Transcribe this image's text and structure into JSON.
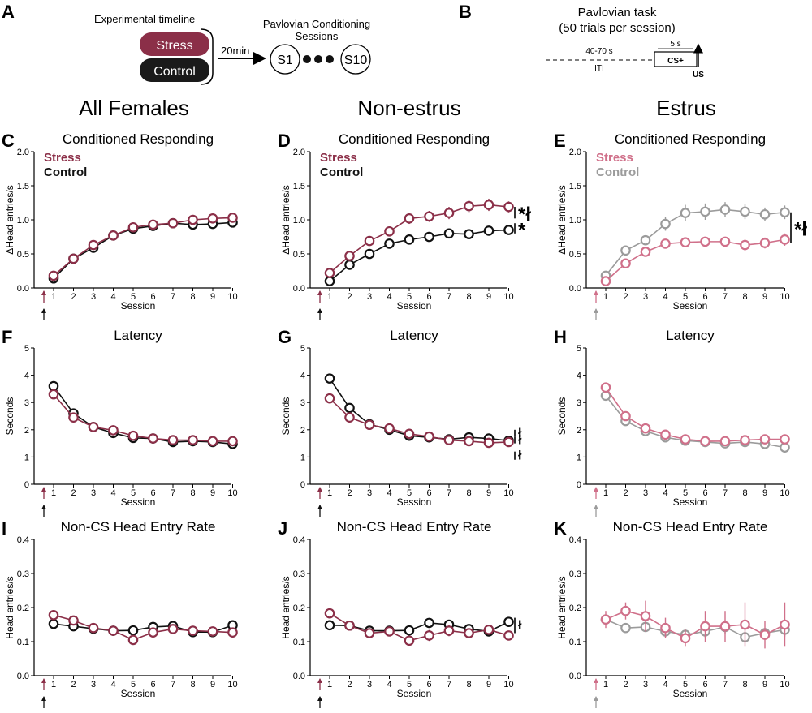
{
  "colors": {
    "stress": "#8b2f48",
    "control": "#111111",
    "estrus_stress": "#d0708a",
    "estrus_control": "#9b9b9b",
    "arrow_stress": "#8b2f48",
    "arrow_control": "#111111"
  },
  "panel_a": {
    "letter": "A",
    "title": "Experimental timeline",
    "stress_label": "Stress",
    "control_label": "Control",
    "delay_label": "20min",
    "sessions_title_1": "Pavlovian Conditioning",
    "sessions_title_2": "Sessions",
    "first_session": "S1",
    "last_session": "S10"
  },
  "panel_b": {
    "letter": "B",
    "title_1": "Pavlovian task",
    "title_2": "(50 trials per session)",
    "iti_duration": "40-70 s",
    "iti_label": "ITI",
    "cs_duration": "5 s",
    "cs_label": "CS+",
    "us_label": "US"
  },
  "columns": [
    "All Females",
    "Non-estrus",
    "Estrus"
  ],
  "chart_data": [
    {
      "id": "C",
      "column": 0,
      "row": 0,
      "type": "line",
      "title": "Conditioned Responding",
      "xlabel": "Session",
      "ylabel": "ΔHead entries/s",
      "ylim": [
        0,
        2
      ],
      "yticks": [
        "0.0",
        "0.5",
        "1.0",
        "1.5",
        "2.0"
      ],
      "ytick_values": [
        0,
        0.5,
        1,
        1.5,
        2
      ],
      "x": [
        1,
        2,
        3,
        4,
        5,
        6,
        7,
        8,
        9,
        10
      ],
      "legend": [
        "Stress",
        "Control"
      ],
      "legend_position": "top-left",
      "series": [
        {
          "name": "Control",
          "color_key": "control",
          "values": [
            0.14,
            0.43,
            0.59,
            0.77,
            0.87,
            0.91,
            0.95,
            0.93,
            0.94,
            0.96
          ],
          "err": [
            0.03,
            0.03,
            0.03,
            0.04,
            0.05,
            0.05,
            0.05,
            0.05,
            0.05,
            0.05
          ]
        },
        {
          "name": "Stress",
          "color_key": "stress",
          "values": [
            0.18,
            0.43,
            0.63,
            0.77,
            0.89,
            0.93,
            0.95,
            1.0,
            1.02,
            1.03
          ],
          "err": [
            0.03,
            0.03,
            0.04,
            0.05,
            0.06,
            0.06,
            0.06,
            0.07,
            0.07,
            0.07
          ]
        }
      ],
      "annotations": [],
      "arrow_color_keys": [
        "arrow_stress",
        "arrow_control"
      ]
    },
    {
      "id": "D",
      "column": 1,
      "row": 0,
      "type": "line",
      "title": "Conditioned Responding",
      "xlabel": "Session",
      "ylabel": "ΔHead entries/s",
      "ylim": [
        0,
        2
      ],
      "yticks": [
        "0.0",
        "0.5",
        "1.0",
        "1.5",
        "2.0"
      ],
      "ytick_values": [
        0,
        0.5,
        1,
        1.5,
        2
      ],
      "x": [
        1,
        2,
        3,
        4,
        5,
        6,
        7,
        8,
        9,
        10
      ],
      "legend": [
        "Stress",
        "Control"
      ],
      "legend_position": "top-left",
      "series": [
        {
          "name": "Control",
          "color_key": "control",
          "values": [
            0.1,
            0.34,
            0.5,
            0.65,
            0.71,
            0.75,
            0.8,
            0.79,
            0.84,
            0.85
          ],
          "err": [
            0.03,
            0.04,
            0.05,
            0.05,
            0.05,
            0.05,
            0.05,
            0.05,
            0.05,
            0.06
          ]
        },
        {
          "name": "Stress",
          "color_key": "stress",
          "values": [
            0.22,
            0.47,
            0.69,
            0.83,
            1.02,
            1.05,
            1.1,
            1.2,
            1.22,
            1.19
          ],
          "err": [
            0.04,
            0.05,
            0.06,
            0.07,
            0.08,
            0.08,
            0.09,
            0.09,
            0.09,
            0.08
          ]
        }
      ],
      "annotations": [
        {
          "text": "*ł",
          "at": 1.19,
          "to": 1.02
        },
        {
          "text": "*",
          "at": 0.95,
          "to": 0.8
        }
      ],
      "arrow_color_keys": [
        "arrow_stress",
        "arrow_control"
      ]
    },
    {
      "id": "E",
      "column": 2,
      "row": 0,
      "type": "line",
      "title": "Conditioned Responding",
      "xlabel": "Session",
      "ylabel": "ΔHead entries/s",
      "ylim": [
        0,
        2
      ],
      "yticks": [
        "0.0",
        "0.5",
        "1.0",
        "1.5",
        "2.0"
      ],
      "ytick_values": [
        0,
        0.5,
        1,
        1.5,
        2
      ],
      "x": [
        1,
        2,
        3,
        4,
        5,
        6,
        7,
        8,
        9,
        10
      ],
      "legend": [
        "Stress",
        "Control"
      ],
      "legend_position": "top-left",
      "series": [
        {
          "name": "Control",
          "color_key": "estrus_control",
          "values": [
            0.18,
            0.55,
            0.7,
            0.94,
            1.1,
            1.12,
            1.15,
            1.12,
            1.08,
            1.11
          ],
          "err": [
            0.04,
            0.06,
            0.07,
            0.1,
            0.12,
            0.12,
            0.11,
            0.11,
            0.1,
            0.1
          ]
        },
        {
          "name": "Stress",
          "color_key": "estrus_stress",
          "values": [
            0.1,
            0.36,
            0.53,
            0.65,
            0.67,
            0.68,
            0.68,
            0.63,
            0.66,
            0.71
          ],
          "err": [
            0.03,
            0.05,
            0.06,
            0.06,
            0.07,
            0.07,
            0.07,
            0.08,
            0.08,
            0.09
          ]
        }
      ],
      "annotations": [
        {
          "text": "*ł",
          "at": 1.11,
          "to": 0.66
        }
      ],
      "arrow_color_keys": [
        "estrus_stress",
        "estrus_control"
      ]
    },
    {
      "id": "F",
      "column": 0,
      "row": 1,
      "type": "line",
      "title": "Latency",
      "xlabel": "Session",
      "ylabel": "Seconds",
      "ylim": [
        0,
        5
      ],
      "yticks": [
        "0",
        "1",
        "2",
        "3",
        "4",
        "5"
      ],
      "ytick_values": [
        0,
        1,
        2,
        3,
        4,
        5
      ],
      "x": [
        1,
        2,
        3,
        4,
        5,
        6,
        7,
        8,
        9,
        10
      ],
      "legend": [],
      "series": [
        {
          "name": "Control",
          "color_key": "control",
          "values": [
            3.6,
            2.6,
            2.1,
            1.88,
            1.7,
            1.68,
            1.55,
            1.58,
            1.55,
            1.48
          ],
          "err": [
            0.1,
            0.08,
            0.07,
            0.06,
            0.06,
            0.06,
            0.05,
            0.05,
            0.05,
            0.05
          ]
        },
        {
          "name": "Stress",
          "color_key": "stress",
          "values": [
            3.3,
            2.45,
            2.1,
            1.98,
            1.78,
            1.68,
            1.62,
            1.62,
            1.58,
            1.58
          ],
          "err": [
            0.1,
            0.08,
            0.07,
            0.07,
            0.06,
            0.06,
            0.05,
            0.05,
            0.05,
            0.05
          ]
        }
      ],
      "annotations": [],
      "arrow_color_keys": [
        "arrow_stress",
        "arrow_control"
      ]
    },
    {
      "id": "G",
      "column": 1,
      "row": 1,
      "type": "line",
      "title": "Latency",
      "xlabel": "Session",
      "ylabel": "Seconds",
      "ylim": [
        0,
        5
      ],
      "yticks": [
        "0",
        "1",
        "2",
        "3",
        "4",
        "5"
      ],
      "ytick_values": [
        0,
        1,
        2,
        3,
        4,
        5
      ],
      "x": [
        1,
        2,
        3,
        4,
        5,
        6,
        7,
        8,
        9,
        10
      ],
      "legend": [],
      "series": [
        {
          "name": "Control",
          "color_key": "control",
          "values": [
            3.88,
            2.8,
            2.2,
            2.0,
            1.78,
            1.72,
            1.65,
            1.72,
            1.68,
            1.6
          ],
          "err": [
            0.12,
            0.09,
            0.08,
            0.07,
            0.06,
            0.06,
            0.06,
            0.06,
            0.06,
            0.06
          ]
        },
        {
          "name": "Stress",
          "color_key": "stress",
          "values": [
            3.15,
            2.45,
            2.18,
            2.05,
            1.85,
            1.75,
            1.62,
            1.58,
            1.52,
            1.55
          ],
          "err": [
            0.12,
            0.09,
            0.08,
            0.07,
            0.06,
            0.06,
            0.06,
            0.06,
            0.06,
            0.06
          ]
        }
      ],
      "annotations": [
        {
          "text": "ł",
          "at": 2.0,
          "to": 1.75
        },
        {
          "text": "ł",
          "at": 1.75,
          "to": 1.5
        },
        {
          "text": "ł",
          "at": 1.2,
          "to": 0.9
        }
      ],
      "arrow_color_keys": [
        "arrow_stress",
        "arrow_control"
      ]
    },
    {
      "id": "H",
      "column": 2,
      "row": 1,
      "type": "line",
      "title": "Latency",
      "xlabel": "Session",
      "ylabel": "Seconds",
      "ylim": [
        0,
        5
      ],
      "yticks": [
        "0",
        "1",
        "2",
        "3",
        "4",
        "5"
      ],
      "ytick_values": [
        0,
        1,
        2,
        3,
        4,
        5
      ],
      "x": [
        1,
        2,
        3,
        4,
        5,
        6,
        7,
        8,
        9,
        10
      ],
      "legend": [],
      "series": [
        {
          "name": "Control",
          "color_key": "estrus_control",
          "values": [
            3.25,
            2.32,
            1.95,
            1.72,
            1.6,
            1.55,
            1.5,
            1.55,
            1.48,
            1.35
          ],
          "err": [
            0.12,
            0.08,
            0.07,
            0.07,
            0.06,
            0.06,
            0.06,
            0.06,
            0.06,
            0.06
          ]
        },
        {
          "name": "Stress",
          "color_key": "estrus_stress",
          "values": [
            3.55,
            2.5,
            2.05,
            1.82,
            1.65,
            1.58,
            1.58,
            1.62,
            1.65,
            1.65
          ],
          "err": [
            0.15,
            0.1,
            0.08,
            0.07,
            0.06,
            0.06,
            0.06,
            0.06,
            0.06,
            0.06
          ]
        }
      ],
      "annotations": [],
      "arrow_color_keys": [
        "estrus_stress",
        "estrus_control"
      ]
    },
    {
      "id": "I",
      "column": 0,
      "row": 2,
      "type": "line",
      "title": "Non-CS Head Entry Rate",
      "xlabel": "Session",
      "ylabel": "Head entries/s",
      "ylim": [
        0,
        0.4
      ],
      "yticks": [
        "0.0",
        "0.1",
        "0.2",
        "0.3",
        "0.4"
      ],
      "ytick_values": [
        0,
        0.1,
        0.2,
        0.3,
        0.4
      ],
      "x": [
        1,
        2,
        3,
        4,
        5,
        6,
        7,
        8,
        9,
        10
      ],
      "legend": [],
      "series": [
        {
          "name": "Control",
          "color_key": "control",
          "values": [
            0.152,
            0.145,
            0.138,
            0.132,
            0.133,
            0.143,
            0.146,
            0.128,
            0.128,
            0.148
          ],
          "err": [
            0.008,
            0.008,
            0.008,
            0.008,
            0.008,
            0.009,
            0.009,
            0.009,
            0.009,
            0.009
          ]
        },
        {
          "name": "Stress",
          "color_key": "stress",
          "values": [
            0.178,
            0.162,
            0.14,
            0.132,
            0.105,
            0.127,
            0.137,
            0.132,
            0.13,
            0.127
          ],
          "err": [
            0.01,
            0.009,
            0.009,
            0.009,
            0.01,
            0.014,
            0.014,
            0.012,
            0.012,
            0.014
          ]
        }
      ],
      "annotations": [],
      "arrow_color_keys": [
        "arrow_stress",
        "arrow_control"
      ]
    },
    {
      "id": "J",
      "column": 1,
      "row": 2,
      "type": "line",
      "title": "Non-CS Head Entry Rate",
      "xlabel": "Session",
      "ylabel": "Head entries/s",
      "ylim": [
        0,
        0.4
      ],
      "yticks": [
        "0.0",
        "0.1",
        "0.2",
        "0.3",
        "0.4"
      ],
      "ytick_values": [
        0,
        0.1,
        0.2,
        0.3,
        0.4
      ],
      "x": [
        1,
        2,
        3,
        4,
        5,
        6,
        7,
        8,
        9,
        10
      ],
      "legend": [],
      "series": [
        {
          "name": "Control",
          "color_key": "control",
          "values": [
            0.148,
            0.147,
            0.132,
            0.132,
            0.133,
            0.155,
            0.15,
            0.137,
            0.13,
            0.158
          ],
          "err": [
            0.01,
            0.009,
            0.009,
            0.009,
            0.01,
            0.014,
            0.014,
            0.012,
            0.012,
            0.014
          ]
        },
        {
          "name": "Stress",
          "color_key": "stress",
          "values": [
            0.183,
            0.147,
            0.125,
            0.13,
            0.103,
            0.118,
            0.132,
            0.125,
            0.135,
            0.118
          ],
          "err": [
            0.012,
            0.009,
            0.009,
            0.009,
            0.01,
            0.016,
            0.016,
            0.014,
            0.014,
            0.012
          ]
        }
      ],
      "annotations": [
        {
          "text": "ł",
          "at": 0.17,
          "to": 0.125
        }
      ],
      "arrow_color_keys": [
        "arrow_stress",
        "arrow_control"
      ]
    },
    {
      "id": "K",
      "column": 2,
      "row": 2,
      "type": "line",
      "title": "Non-CS Head Entry Rate",
      "xlabel": "Session",
      "ylabel": "Head entries/s",
      "ylim": [
        0,
        0.4
      ],
      "yticks": [
        "0.0",
        "0.1",
        "0.2",
        "0.3",
        "0.4"
      ],
      "ytick_values": [
        0,
        0.1,
        0.2,
        0.3,
        0.4
      ],
      "x": [
        1,
        2,
        3,
        4,
        5,
        6,
        7,
        8,
        9,
        10
      ],
      "legend": [],
      "series": [
        {
          "name": "Control",
          "color_key": "estrus_control",
          "values": [
            0.165,
            0.14,
            0.143,
            0.13,
            0.12,
            0.13,
            0.143,
            0.113,
            0.125,
            0.135
          ],
          "err": [
            0.015,
            0.012,
            0.012,
            0.015,
            0.015,
            0.02,
            0.02,
            0.015,
            0.015,
            0.02
          ]
        },
        {
          "name": "Stress",
          "color_key": "estrus_stress",
          "values": [
            0.165,
            0.19,
            0.175,
            0.14,
            0.11,
            0.145,
            0.145,
            0.15,
            0.12,
            0.15
          ],
          "err": [
            0.025,
            0.025,
            0.045,
            0.03,
            0.025,
            0.045,
            0.045,
            0.065,
            0.04,
            0.065
          ]
        }
      ],
      "annotations": [],
      "arrow_color_keys": [
        "estrus_stress",
        "estrus_control"
      ]
    }
  ]
}
